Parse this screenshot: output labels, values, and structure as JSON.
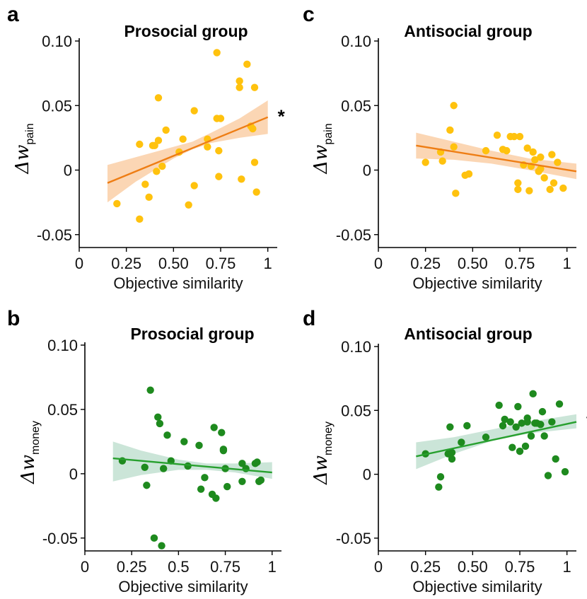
{
  "chart_data": [
    {
      "type": "scatter",
      "letter": "a",
      "title": "Prosocial group",
      "xlabel": "Objective similarity",
      "ylabel": {
        "symbol": "Δw",
        "subscript": "pain"
      },
      "xlim": [
        0,
        1.05
      ],
      "ylim": [
        -0.06,
        0.1
      ],
      "xticks": [
        0,
        0.25,
        0.5,
        0.75,
        1
      ],
      "xtick_labels": [
        "0",
        "0.25",
        "0.50",
        "0.75",
        "1"
      ],
      "yticks": [
        -0.05,
        0,
        0.05,
        0.1
      ],
      "ytick_labels": [
        "-0.05",
        "0",
        "0.05",
        "0.10"
      ],
      "point_color": "#FFC20E",
      "line_color": "#EE7D14",
      "band_color": "#F9C89B",
      "fit": {
        "x": [
          0.15,
          1.0
        ],
        "y": [
          -0.01,
          0.041
        ]
      },
      "band": {
        "x": [
          0.15,
          0.3,
          0.5,
          0.6,
          0.7,
          0.85,
          1.0
        ],
        "lower": [
          -0.025,
          -0.009,
          0.009,
          0.016,
          0.021,
          0.025,
          0.028
        ],
        "upper": [
          0.004,
          0.01,
          0.018,
          0.022,
          0.029,
          0.04,
          0.054
        ]
      },
      "significance": "*",
      "points": {
        "x": [
          0.2,
          0.32,
          0.32,
          0.35,
          0.37,
          0.39,
          0.4,
          0.41,
          0.42,
          0.42,
          0.44,
          0.46,
          0.53,
          0.55,
          0.58,
          0.61,
          0.61,
          0.68,
          0.68,
          0.73,
          0.73,
          0.74,
          0.74,
          0.75,
          0.85,
          0.85,
          0.86,
          0.89,
          0.91,
          0.92,
          0.93,
          0.93,
          0.94
        ],
        "y": [
          -0.026,
          -0.038,
          0.02,
          -0.011,
          -0.021,
          0.019,
          0.019,
          -0.001,
          0.023,
          0.056,
          0.003,
          0.031,
          0.014,
          0.024,
          -0.027,
          0.046,
          -0.012,
          0.024,
          0.018,
          0.091,
          0.04,
          0.015,
          -0.005,
          0.04,
          0.069,
          0.064,
          -0.007,
          0.082,
          0.034,
          0.032,
          0.064,
          0.006,
          -0.017
        ]
      }
    },
    {
      "type": "scatter",
      "letter": "b",
      "title": "Prosocial group",
      "xlabel": "Objective similarity",
      "ylabel": {
        "symbol": "Δw",
        "subscript": "money"
      },
      "xlim": [
        0,
        1.05
      ],
      "ylim": [
        -0.06,
        0.1
      ],
      "xticks": [
        0,
        0.25,
        0.5,
        0.75,
        1
      ],
      "xtick_labels": [
        "0",
        "0.25",
        "0.5",
        "0.75",
        "1"
      ],
      "yticks": [
        -0.05,
        0,
        0.05,
        0.1
      ],
      "ytick_labels": [
        "-0.05",
        "0",
        "0.05",
        "0.10"
      ],
      "point_color": "#1E8A1E",
      "line_color": "#27A02E",
      "band_color": "#B9DCCB",
      "fit": {
        "x": [
          0.15,
          1.0
        ],
        "y": [
          0.012,
          0.001
        ]
      },
      "band": {
        "x": [
          0.15,
          0.3,
          0.5,
          0.65,
          0.8,
          1.0
        ],
        "lower": [
          -0.006,
          -0.001,
          0.003,
          0.003,
          0.001,
          -0.004
        ],
        "upper": [
          0.025,
          0.018,
          0.011,
          0.008,
          0.008,
          0.009
        ]
      },
      "significance": "",
      "points": {
        "x": [
          0.2,
          0.32,
          0.33,
          0.35,
          0.37,
          0.39,
          0.4,
          0.41,
          0.42,
          0.44,
          0.46,
          0.53,
          0.55,
          0.61,
          0.62,
          0.64,
          0.68,
          0.69,
          0.7,
          0.73,
          0.74,
          0.74,
          0.75,
          0.76,
          0.84,
          0.84,
          0.86,
          0.91,
          0.92,
          0.93,
          0.94
        ],
        "y": [
          0.01,
          0.005,
          -0.009,
          0.065,
          -0.05,
          0.044,
          0.039,
          -0.056,
          0.004,
          0.03,
          0.01,
          0.025,
          0.006,
          0.022,
          -0.012,
          -0.003,
          -0.016,
          0.036,
          -0.019,
          0.032,
          0.019,
          0.018,
          0.004,
          -0.01,
          0.008,
          -0.006,
          0.004,
          0.008,
          0.009,
          -0.006,
          -0.005
        ]
      }
    },
    {
      "type": "scatter",
      "letter": "c",
      "title": "Antisocial group",
      "xlabel": "Objective similarity",
      "ylabel": {
        "symbol": "Δw",
        "subscript": "pain"
      },
      "xlim": [
        0,
        1.05
      ],
      "ylim": [
        -0.06,
        0.1
      ],
      "xticks": [
        0,
        0.25,
        0.5,
        0.75,
        1
      ],
      "xtick_labels": [
        "0",
        "0.25",
        "0.50",
        "0.75",
        "1"
      ],
      "yticks": [
        -0.05,
        0,
        0.05,
        0.1
      ],
      "ytick_labels": [
        "-0.05",
        "0",
        "0.05",
        "0.10"
      ],
      "point_color": "#FFC20E",
      "line_color": "#EE7D14",
      "band_color": "#F9C89B",
      "fit": {
        "x": [
          0.2,
          1.05
        ],
        "y": [
          0.019,
          -0.001
        ]
      },
      "band": {
        "x": [
          0.2,
          0.4,
          0.6,
          0.8,
          1.05
        ],
        "lower": [
          0.009,
          0.008,
          0.005,
          0.0,
          -0.007
        ],
        "upper": [
          0.029,
          0.022,
          0.015,
          0.009,
          0.005
        ]
      },
      "significance": "",
      "points": {
        "x": [
          0.25,
          0.33,
          0.34,
          0.38,
          0.4,
          0.4,
          0.41,
          0.46,
          0.48,
          0.57,
          0.63,
          0.66,
          0.68,
          0.7,
          0.72,
          0.74,
          0.74,
          0.75,
          0.77,
          0.79,
          0.8,
          0.81,
          0.82,
          0.83,
          0.85,
          0.86,
          0.86,
          0.88,
          0.91,
          0.92,
          0.93,
          0.95,
          0.98
        ],
        "y": [
          0.006,
          0.014,
          0.007,
          0.031,
          0.05,
          0.018,
          -0.018,
          -0.004,
          -0.003,
          0.015,
          0.027,
          0.016,
          0.015,
          0.026,
          0.026,
          -0.015,
          -0.01,
          0.026,
          0.004,
          0.017,
          -0.016,
          0.003,
          0.014,
          0.008,
          -0.001,
          0.01,
          0.001,
          -0.006,
          -0.015,
          0.012,
          -0.01,
          0.006,
          -0.014
        ]
      }
    },
    {
      "type": "scatter",
      "letter": "d",
      "title": "Antisocial group",
      "xlabel": "Objective similarity",
      "ylabel": {
        "symbol": "Δw",
        "subscript": "money"
      },
      "xlim": [
        0,
        1.05
      ],
      "ylim": [
        -0.06,
        0.1
      ],
      "xticks": [
        0,
        0.25,
        0.5,
        0.75,
        1
      ],
      "xtick_labels": [
        "0",
        "0.25",
        "0.50",
        "0.75",
        "1"
      ],
      "yticks": [
        -0.05,
        0,
        0.05,
        0.1
      ],
      "ytick_labels": [
        "-0.05",
        "0",
        "0.05",
        "0.10"
      ],
      "point_color": "#1E8A1E",
      "line_color": "#27A02E",
      "band_color": "#B9DCCB",
      "fit": {
        "x": [
          0.2,
          1.05
        ],
        "y": [
          0.014,
          0.041
        ]
      },
      "band": {
        "x": [
          0.2,
          0.4,
          0.6,
          0.8,
          1.05
        ],
        "lower": [
          0.004,
          0.016,
          0.026,
          0.032,
          0.036
        ],
        "upper": [
          0.025,
          0.029,
          0.035,
          0.041,
          0.047
        ]
      },
      "significance": "*",
      "points": {
        "x": [
          0.25,
          0.32,
          0.33,
          0.37,
          0.38,
          0.39,
          0.39,
          0.44,
          0.47,
          0.57,
          0.64,
          0.66,
          0.67,
          0.7,
          0.71,
          0.73,
          0.74,
          0.75,
          0.76,
          0.78,
          0.79,
          0.79,
          0.81,
          0.82,
          0.83,
          0.84,
          0.86,
          0.87,
          0.88,
          0.9,
          0.92,
          0.94,
          0.96,
          0.99
        ],
        "y": [
          0.016,
          -0.01,
          -0.002,
          0.016,
          0.037,
          0.017,
          0.012,
          0.025,
          0.038,
          0.029,
          0.054,
          0.038,
          0.043,
          0.041,
          0.021,
          0.037,
          0.053,
          0.018,
          0.04,
          0.022,
          0.041,
          0.044,
          0.03,
          0.063,
          0.04,
          0.04,
          0.039,
          0.049,
          0.03,
          -0.001,
          0.041,
          0.012,
          0.055,
          0.002
        ]
      }
    }
  ]
}
